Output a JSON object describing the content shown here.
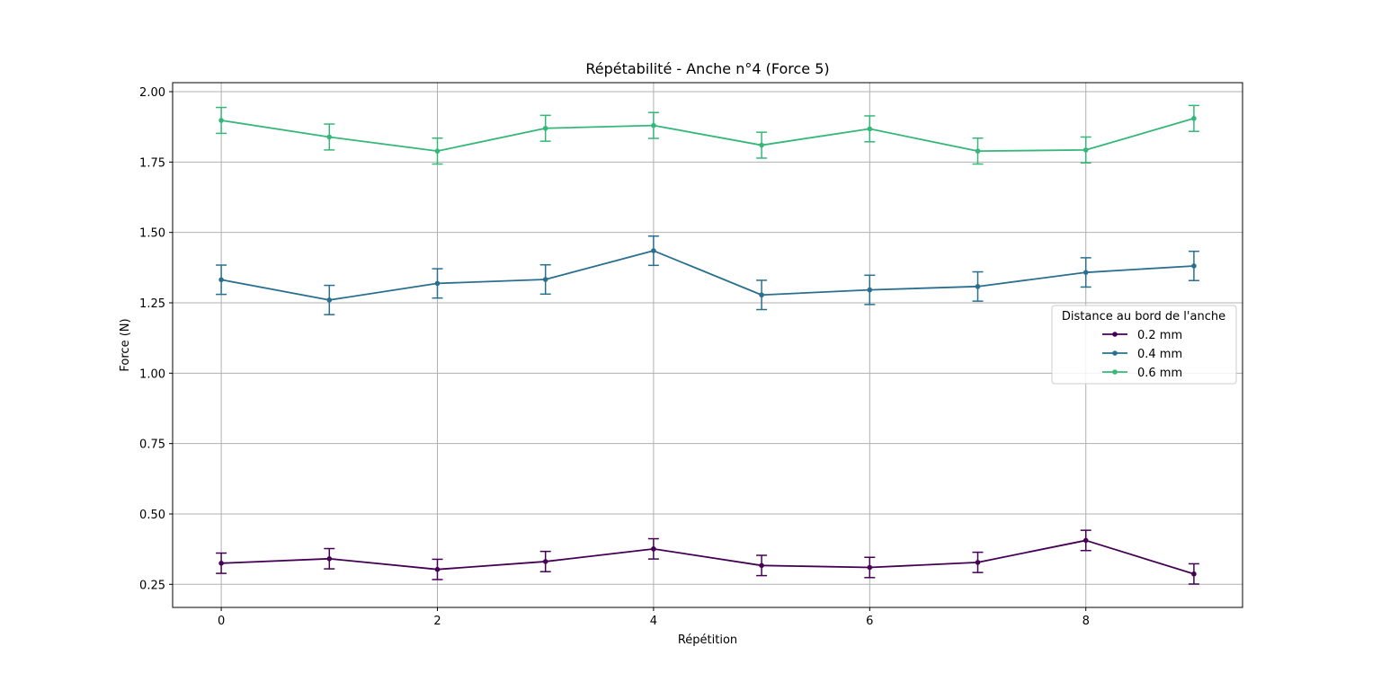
{
  "chart_data": {
    "type": "line",
    "title": "Répétabilité - Anche n°4 (Force 5)",
    "xlabel": "Répétition",
    "ylabel": "Force (N)",
    "xlim": [
      -0.45,
      9.45
    ],
    "ylim": [
      0.168,
      2.032
    ],
    "x_ticks": [
      0,
      2,
      4,
      6,
      8
    ],
    "x_tick_labels": [
      "0",
      "2",
      "4",
      "6",
      "8"
    ],
    "y_ticks": [
      0.25,
      0.5,
      0.75,
      1.0,
      1.25,
      1.5,
      1.75,
      2.0
    ],
    "y_tick_labels": [
      "0.25",
      "0.50",
      "0.75",
      "1.00",
      "1.25",
      "1.50",
      "1.75",
      "2.00"
    ],
    "grid": true,
    "legend": {
      "title": "Distance au bord de l'anche",
      "placement": "right"
    },
    "x": [
      0,
      1,
      2,
      3,
      4,
      5,
      6,
      7,
      8,
      9
    ],
    "series": [
      {
        "name": "0.2 mm",
        "color": "#440154",
        "values": [
          0.325,
          0.341,
          0.303,
          0.331,
          0.376,
          0.317,
          0.31,
          0.328,
          0.406,
          0.287
        ],
        "errors": [
          0.036,
          0.036,
          0.036,
          0.036,
          0.036,
          0.036,
          0.036,
          0.036,
          0.036,
          0.036
        ]
      },
      {
        "name": "0.4 mm",
        "color": "#2a6f8e",
        "values": [
          1.332,
          1.26,
          1.319,
          1.333,
          1.435,
          1.278,
          1.296,
          1.308,
          1.358,
          1.381
        ],
        "errors": [
          0.052,
          0.052,
          0.052,
          0.052,
          0.052,
          0.052,
          0.052,
          0.052,
          0.052,
          0.052
        ]
      },
      {
        "name": "0.6 mm",
        "color": "#35b779",
        "values": [
          1.898,
          1.839,
          1.789,
          1.87,
          1.88,
          1.81,
          1.868,
          1.789,
          1.793,
          1.905
        ],
        "errors": [
          0.046,
          0.046,
          0.046,
          0.046,
          0.046,
          0.046,
          0.046,
          0.046,
          0.046,
          0.046
        ]
      }
    ]
  }
}
